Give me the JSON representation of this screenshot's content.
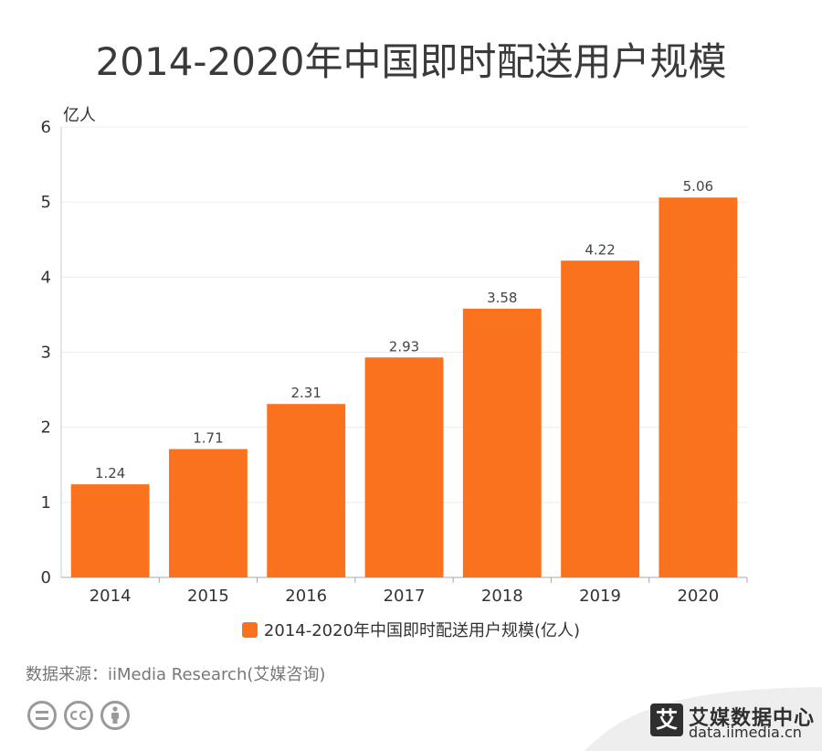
{
  "chart_data": {
    "type": "bar",
    "title": "2014-2020年中国即时配送用户规模",
    "ylabel": "亿人",
    "xlabel": "",
    "categories": [
      "2014",
      "2015",
      "2016",
      "2017",
      "2018",
      "2019",
      "2020"
    ],
    "series": [
      {
        "name": "2014-2020年中国即时配送用户规模(亿人)",
        "values": [
          1.24,
          1.71,
          2.31,
          2.93,
          3.58,
          4.22,
          5.06
        ],
        "labels": [
          "1.24",
          "1.71",
          "2.31",
          "2.93",
          "3.58",
          "4.22",
          "5.06"
        ],
        "color": "#fa711e"
      }
    ],
    "ylim": [
      0,
      6
    ],
    "yticks": [
      "0",
      "1",
      "2",
      "3",
      "4",
      "5",
      "6"
    ],
    "grid": true,
    "legend_position": "bottom-center"
  },
  "source_note": "数据来源：iiMedia Research(艾媒咨询)",
  "brand": {
    "logo_char": "艾",
    "name": "艾媒数据中心",
    "url": "data.iimedia.cn"
  },
  "license_icons": [
    "equals-icon",
    "cc-icon",
    "person-icon"
  ],
  "colors": {
    "bar": "#fa711e",
    "footer_band": "#eeeeee"
  }
}
